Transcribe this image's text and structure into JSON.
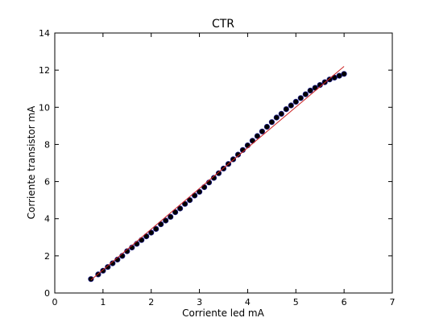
{
  "chart_data": {
    "type": "scatter",
    "title": "CTR",
    "xlabel": "Corriente led mA",
    "ylabel": "Corriente transistor mA",
    "xlim": [
      0,
      7
    ],
    "ylim": [
      0,
      14
    ],
    "xticks": [
      0,
      1,
      2,
      3,
      4,
      5,
      6,
      7
    ],
    "yticks": [
      0,
      2,
      4,
      6,
      8,
      10,
      12,
      14
    ],
    "grid": false,
    "legend": "none",
    "colors": {
      "points": "#000000",
      "points_edge": "#1a1a80",
      "fit_line": "#cc2222",
      "frame": "#000000",
      "background": "#ffffff"
    },
    "series": [
      {
        "kind": "scatter",
        "x": [
          0.75,
          0.9,
          1.0,
          1.1,
          1.2,
          1.3,
          1.4,
          1.5,
          1.6,
          1.7,
          1.8,
          1.9,
          2.0,
          2.1,
          2.2,
          2.3,
          2.4,
          2.5,
          2.6,
          2.7,
          2.8,
          2.9,
          3.0,
          3.1,
          3.2,
          3.3,
          3.4,
          3.5,
          3.6,
          3.7,
          3.8,
          3.9,
          4.0,
          4.1,
          4.2,
          4.3,
          4.4,
          4.5,
          4.6,
          4.7,
          4.8,
          4.9,
          5.0,
          5.1,
          5.2,
          5.3,
          5.4,
          5.5,
          5.6,
          5.7,
          5.8,
          5.9,
          6.0
        ],
        "y": [
          0.75,
          1.0,
          1.2,
          1.4,
          1.6,
          1.8,
          2.0,
          2.25,
          2.45,
          2.65,
          2.85,
          3.05,
          3.25,
          3.45,
          3.7,
          3.9,
          4.1,
          4.35,
          4.55,
          4.8,
          5.0,
          5.25,
          5.45,
          5.7,
          5.95,
          6.2,
          6.45,
          6.7,
          6.95,
          7.2,
          7.45,
          7.7,
          7.95,
          8.2,
          8.45,
          8.7,
          8.95,
          9.2,
          9.45,
          9.65,
          9.9,
          10.1,
          10.3,
          10.5,
          10.7,
          10.9,
          11.05,
          11.2,
          11.35,
          11.5,
          11.6,
          11.7,
          11.8
        ]
      },
      {
        "kind": "line",
        "x": [
          0.75,
          6.0
        ],
        "y": [
          0.7,
          12.2
        ]
      }
    ]
  }
}
